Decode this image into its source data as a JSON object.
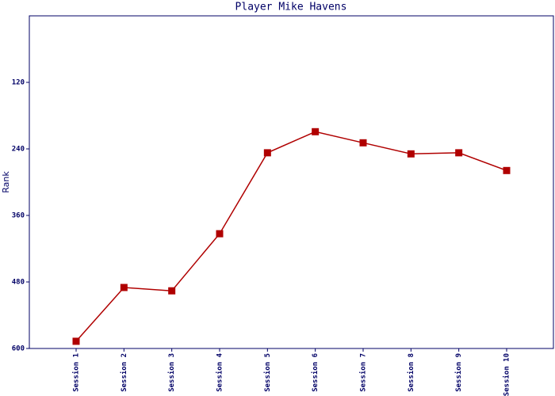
{
  "chart_data": {
    "type": "line",
    "title": "Player Mike Havens",
    "y_label": "Rank",
    "categories": [
      "Session 1",
      "Session 2",
      "Session 3",
      "Session 4",
      "Session 5",
      "Session 6",
      "Session 7",
      "Session 8",
      "Session 9",
      "Session 10"
    ],
    "series": [
      {
        "name": "Rank",
        "color": "#b00000",
        "values": [
          587,
          490,
          496,
          393,
          247,
          209,
          229,
          249,
          247,
          279
        ]
      }
    ],
    "ylim": [
      600,
      0
    ],
    "yticks": [
      120,
      240,
      360,
      480,
      600
    ],
    "grid": false
  }
}
